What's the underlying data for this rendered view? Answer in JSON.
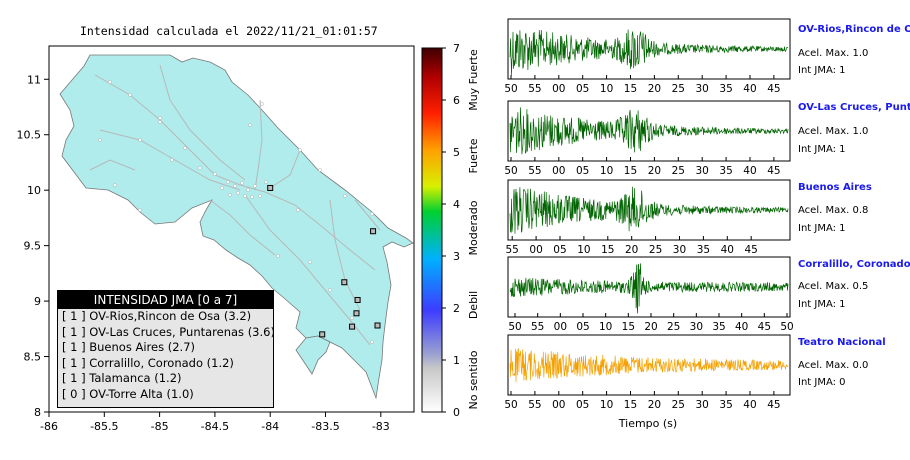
{
  "title": "Intensidad calculada el 2022/11/21_01:01:57",
  "map": {
    "lon_ticks": [
      "-86",
      "-85.5",
      "-85",
      "-84.5",
      "-84",
      "-83.5",
      "-83"
    ],
    "lat_ticks": [
      "11",
      "10.5",
      "10",
      "9.5",
      "9",
      "8.5",
      "8"
    ],
    "stations": [
      {
        "lon": -84.0,
        "lat": 10.02
      },
      {
        "lon": -83.07,
        "lat": 9.63
      },
      {
        "lon": -83.33,
        "lat": 9.17
      },
      {
        "lon": -83.21,
        "lat": 9.01
      },
      {
        "lon": -83.22,
        "lat": 8.89
      },
      {
        "lon": -83.26,
        "lat": 8.77
      },
      {
        "lon": -83.03,
        "lat": 8.78
      },
      {
        "lon": -83.53,
        "lat": 8.7
      }
    ]
  },
  "colorbar": {
    "ticks": [
      "0",
      "1",
      "2",
      "3",
      "4",
      "5",
      "6",
      "7"
    ],
    "labels": [
      "No sentido",
      "Debil",
      "Moderado",
      "Fuerte",
      "Muy Fuerte"
    ]
  },
  "legend": {
    "header": "INTENSIDAD JMA [0 a 7]",
    "rows": [
      "[ 1 ] OV-Rios,Rincon de Osa (3.2)",
      "[ 1 ] OV-Las Cruces, Puntarenas (3.6)",
      "[ 1 ] Buenos Aires (2.7)",
      "[ 1 ] Corralillo, Coronado (1.2)",
      "[ 1 ] Talamanca (1.2)",
      "[ 0 ] OV-Torre Alta (1.0)"
    ]
  },
  "waveforms": {
    "xlabel": "Tiempo (s)",
    "panels": [
      {
        "name": "OV-Rios,Rincon de Osa",
        "acel": "Acel. Max. 1.0",
        "int": "Int JMA: 1",
        "color": "#006400",
        "ticks": [
          "50",
          "55",
          "00",
          "05",
          "10",
          "15",
          "20",
          "25",
          "30",
          "35",
          "40",
          "45"
        ],
        "first": 50
      },
      {
        "name": "OV-Las Cruces, Puntarenas",
        "acel": "Acel. Max. 1.0",
        "int": "Int JMA: 1",
        "color": "#006400",
        "ticks": [
          "50",
          "55",
          "00",
          "05",
          "10",
          "15",
          "20",
          "25",
          "30",
          "35",
          "40",
          "45"
        ],
        "first": 50
      },
      {
        "name": "Buenos Aires",
        "acel": "Acel. Max. 0.8",
        "int": "Int JMA: 1",
        "color": "#006400",
        "ticks": [
          "55",
          "00",
          "05",
          "10",
          "15",
          "20",
          "25",
          "30",
          "35",
          "40",
          "45"
        ],
        "first": 55
      },
      {
        "name": "Corralillo, Coronado",
        "acel": "Acel. Max. 0.5",
        "int": "Int JMA: 1",
        "color": "#006400",
        "ticks": [
          "50",
          "55",
          "00",
          "05",
          "10",
          "15",
          "20",
          "25",
          "30",
          "35",
          "40",
          "45",
          "50"
        ],
        "first": 50
      },
      {
        "name": "Teatro Nacional",
        "acel": "Acel. Max. 0.0",
        "int": "Int JMA: 0",
        "color": "#f5a000",
        "ticks": [
          "50",
          "55",
          "00",
          "05",
          "10",
          "15",
          "20",
          "25",
          "30",
          "35",
          "40",
          "45"
        ],
        "first": 50
      }
    ]
  },
  "chart_data": [
    {
      "type": "scatter",
      "title": "Intensidad calculada el 2022/11/21_01:01:57",
      "xlim": [
        -86,
        -82.5
      ],
      "ylim": [
        8,
        11.3
      ],
      "series": [
        {
          "x": [
            -84.0,
            -83.07,
            -83.33,
            -83.21,
            -83.22,
            -83.26,
            -83.03,
            -83.53
          ],
          "y": [
            10.02,
            9.63,
            9.17,
            9.01,
            8.89,
            8.77,
            8.78,
            8.7
          ]
        }
      ]
    },
    {
      "type": "line",
      "xlabel": "Tiempo (s)",
      "series": [
        {
          "name": "OV-Rios,Rincon de Osa",
          "values": [
            1.0
          ]
        },
        {
          "name": "OV-Las Cruces, Puntarenas",
          "values": [
            1.0
          ]
        },
        {
          "name": "Buenos Aires",
          "values": [
            0.8
          ]
        },
        {
          "name": "Corralillo, Coronado",
          "values": [
            0.5
          ]
        },
        {
          "name": "Teatro Nacional",
          "values": [
            0.0
          ]
        }
      ]
    }
  ]
}
